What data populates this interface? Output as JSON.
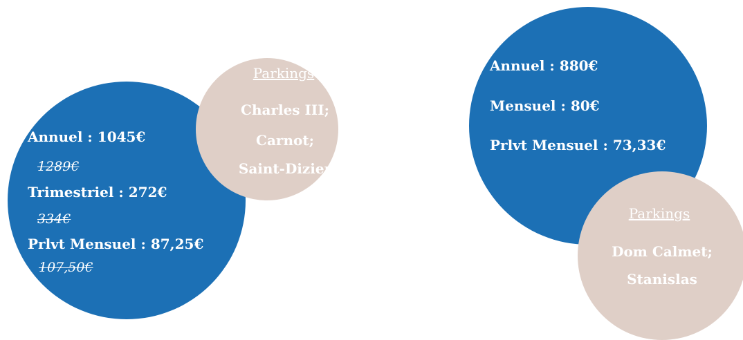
{
  "offers": [
    {
      "prices": [
        {
          "label": "Annuel : 1045€",
          "old": "1289€"
        },
        {
          "label": "Trimestriel : 272€",
          "old": "334€"
        },
        {
          "label": "Prlvt Mensuel : 87,25€",
          "old": "107,50€"
        }
      ],
      "parkings_title": "Parkings ",
      "parkings": [
        "Charles III;",
        "Carnot;",
        "Saint-Dizier"
      ]
    },
    {
      "prices": [
        {
          "label": "Annuel : 880€"
        },
        {
          "label": "Mensuel : 80€"
        },
        {
          "label": "Prlvt Mensuel : 73,33€"
        }
      ],
      "parkings_title": "Parkings ",
      "parkings": [
        "Dom Calmet;",
        "Stanislas"
      ]
    }
  ]
}
